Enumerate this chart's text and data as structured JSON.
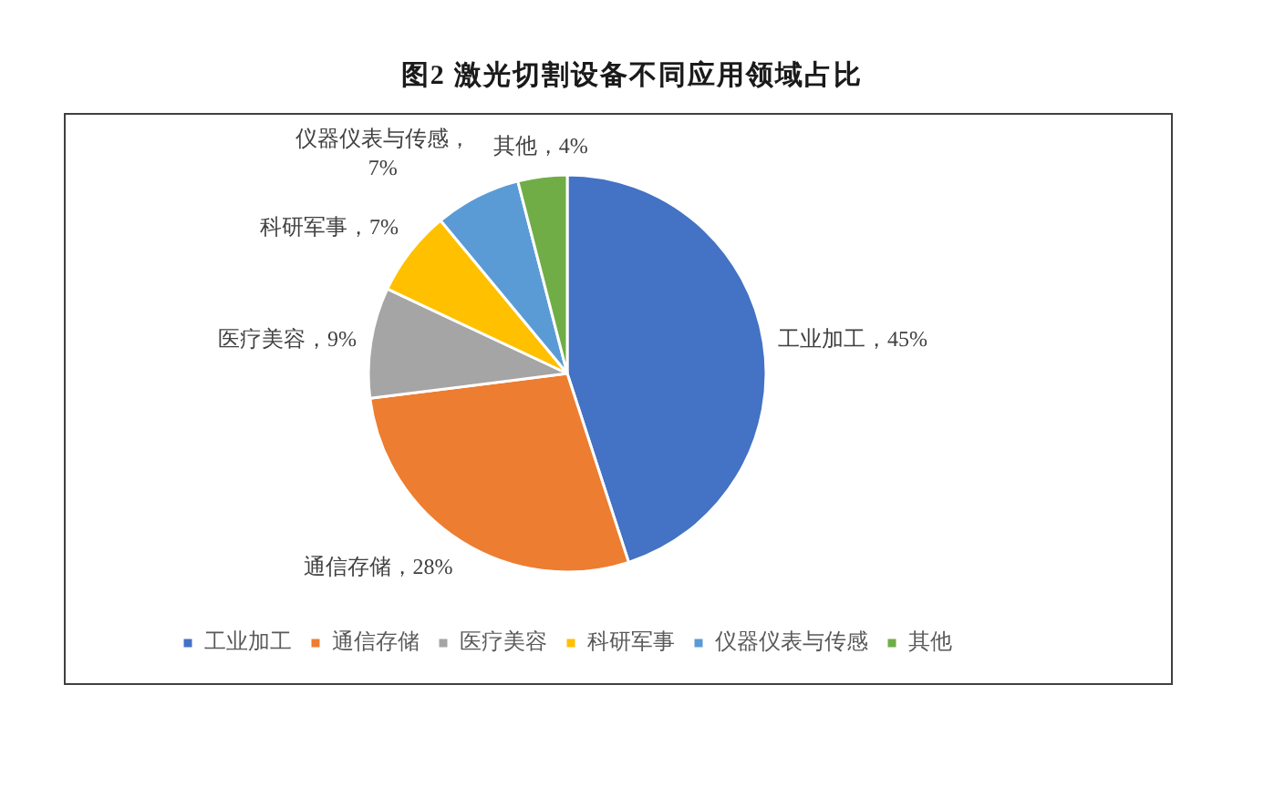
{
  "chart_data": {
    "type": "pie",
    "title": "图2 激光切割设备不同应用领域占比",
    "categories": [
      "工业加工",
      "通信存储",
      "医疗美容",
      "科研军事",
      "仪器仪表与传感",
      "其他"
    ],
    "values": [
      45,
      28,
      9,
      7,
      7,
      4
    ],
    "colors": [
      "#4472c4",
      "#ed7d31",
      "#a5a5a5",
      "#ffc000",
      "#5b9bd5",
      "#70ad47"
    ],
    "value_labels": [
      "工业加工，45%",
      "通信存储，28%",
      "医疗美容，9%",
      "科研军事，7%",
      "仪器仪表与传感，7%",
      "其他，4%"
    ],
    "legend": "bottom"
  }
}
